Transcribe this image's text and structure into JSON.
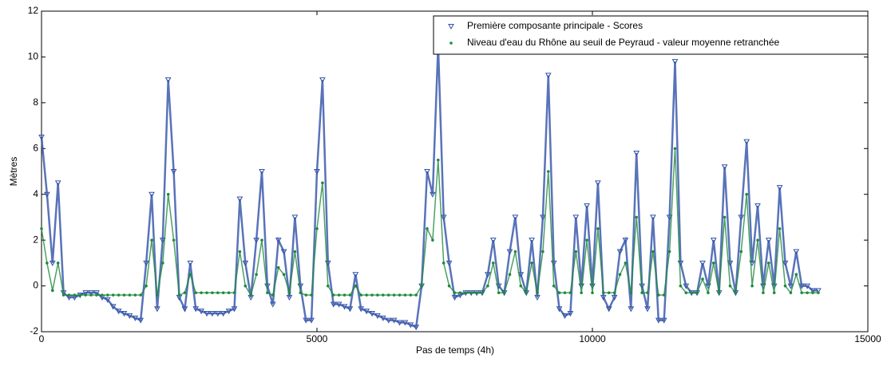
{
  "chart_data": {
    "type": "scatter",
    "xlabel": "Pas de temps (4h)",
    "ylabel": "Mètres",
    "xlim": [
      0,
      15000
    ],
    "ylim": [
      -2,
      12
    ],
    "xticks": [
      0,
      5000,
      10000,
      15000
    ],
    "yticks": [
      -2,
      0,
      2,
      4,
      6,
      8,
      10,
      12
    ],
    "legend": "upper right",
    "x": [
      0,
      100,
      200,
      300,
      400,
      500,
      600,
      700,
      800,
      900,
      1000,
      1100,
      1200,
      1300,
      1400,
      1500,
      1600,
      1700,
      1800,
      1900,
      2000,
      2100,
      2200,
      2300,
      2400,
      2500,
      2600,
      2700,
      2800,
      2900,
      3000,
      3100,
      3200,
      3300,
      3400,
      3500,
      3600,
      3700,
      3800,
      3900,
      4000,
      4100,
      4200,
      4300,
      4400,
      4500,
      4600,
      4700,
      4800,
      4900,
      5000,
      5100,
      5200,
      5300,
      5400,
      5500,
      5600,
      5700,
      5800,
      5900,
      6000,
      6100,
      6200,
      6300,
      6400,
      6500,
      6600,
      6700,
      6800,
      6900,
      7000,
      7100,
      7200,
      7300,
      7400,
      7500,
      7600,
      7700,
      7800,
      7900,
      8000,
      8100,
      8200,
      8300,
      8400,
      8500,
      8600,
      8700,
      8800,
      8900,
      9000,
      9100,
      9200,
      9300,
      9400,
      9500,
      9600,
      9700,
      9800,
      9900,
      10000,
      10100,
      10200,
      10300,
      10400,
      10500,
      10600,
      10700,
      10800,
      10900,
      11000,
      11100,
      11200,
      11300,
      11400,
      11500,
      11600,
      11700,
      11800,
      11900,
      12000,
      12100,
      12200,
      12300,
      12400,
      12500,
      12600,
      12700,
      12800,
      12900,
      13000,
      13100,
      13200,
      13300,
      13400,
      13500,
      13600,
      13700,
      13800,
      13900,
      14000,
      14100
    ],
    "series": [
      {
        "name": "Première composante principale - Scores",
        "color": "#3050a8",
        "marker": "triangle",
        "values": [
          6.5,
          4,
          1,
          4.5,
          -0.3,
          -0.5,
          -0.5,
          -0.4,
          -0.3,
          -0.3,
          -0.3,
          -0.5,
          -0.6,
          -0.9,
          -1.1,
          -1.2,
          -1.3,
          -1.4,
          -1.5,
          1,
          4,
          -1,
          2,
          9,
          5,
          -0.5,
          -1,
          1,
          -1,
          -1.1,
          -1.2,
          -1.2,
          -1.2,
          -1.2,
          -1.1,
          -1,
          3.8,
          1,
          -0.5,
          2,
          5,
          0,
          -0.8,
          2,
          1.5,
          -0.5,
          3,
          0,
          -1.5,
          -1.5,
          5,
          9,
          1,
          -0.8,
          -0.8,
          -0.9,
          -1,
          0.5,
          -1,
          -1.1,
          -1.2,
          -1.3,
          -1.4,
          -1.5,
          -1.5,
          -1.6,
          -1.6,
          -1.7,
          -1.8,
          0,
          5,
          4,
          10.5,
          3,
          1,
          -0.5,
          -0.4,
          -0.3,
          -0.3,
          -0.3,
          -0.3,
          0.5,
          2,
          0,
          -0.3,
          1.5,
          3,
          0.5,
          -0.3,
          2,
          -0.5,
          3,
          9.2,
          1,
          -1,
          -1.3,
          -1.2,
          3,
          0,
          3.5,
          0,
          4.5,
          -0.5,
          -1,
          -0.5,
          1.5,
          2,
          -1,
          5.8,
          0,
          -1,
          3,
          -1.5,
          -1.5,
          3,
          9.8,
          1,
          0,
          -0.3,
          -0.3,
          1,
          0,
          2,
          -0.3,
          5.2,
          1,
          -0.3,
          3,
          6.3,
          1,
          3.5,
          0,
          2,
          0,
          4.3,
          1,
          0,
          1.5,
          0,
          0,
          -0.2,
          -0.2
        ]
      },
      {
        "name": "Niveau d'eau du Rhône au seuil de Peyraud - valeur moyenne retranchée",
        "color": "#1e8a3c",
        "marker": "circle",
        "values": [
          2.5,
          1,
          -0.2,
          1,
          -0.4,
          -0.4,
          -0.4,
          -0.4,
          -0.4,
          -0.4,
          -0.4,
          -0.4,
          -0.4,
          -0.4,
          -0.4,
          -0.4,
          -0.4,
          -0.4,
          -0.4,
          0,
          2,
          -0.4,
          1,
          4,
          2,
          -0.4,
          -0.3,
          0.5,
          -0.3,
          -0.3,
          -0.3,
          -0.3,
          -0.3,
          -0.3,
          -0.3,
          -0.3,
          1.5,
          0,
          -0.4,
          0.5,
          2,
          -0.3,
          -0.4,
          0.8,
          0.5,
          -0.3,
          1.5,
          -0.3,
          -0.4,
          -0.4,
          2.5,
          4.5,
          0,
          -0.4,
          -0.4,
          -0.4,
          -0.4,
          0,
          -0.4,
          -0.4,
          -0.4,
          -0.4,
          -0.4,
          -0.4,
          -0.4,
          -0.4,
          -0.4,
          -0.4,
          -0.4,
          0,
          2.5,
          2,
          5.5,
          1,
          0,
          -0.3,
          -0.3,
          -0.3,
          -0.3,
          -0.3,
          -0.3,
          0,
          1,
          -0.3,
          -0.3,
          0.5,
          1.5,
          0,
          -0.3,
          1,
          -0.3,
          1.5,
          5,
          0,
          -0.3,
          -0.3,
          -0.3,
          1.5,
          -0.3,
          2,
          -0.3,
          2.5,
          -0.3,
          -0.3,
          -0.3,
          0.5,
          1,
          -0.3,
          3,
          -0.3,
          -0.3,
          1.5,
          -0.4,
          -0.4,
          1.5,
          6,
          0,
          -0.3,
          -0.3,
          -0.3,
          0.3,
          -0.3,
          1,
          -0.3,
          3,
          0,
          -0.3,
          1.5,
          4,
          0,
          2,
          -0.3,
          1,
          -0.3,
          2.5,
          0,
          -0.3,
          0.5,
          -0.3,
          -0.3,
          -0.3,
          -0.3
        ]
      }
    ]
  }
}
